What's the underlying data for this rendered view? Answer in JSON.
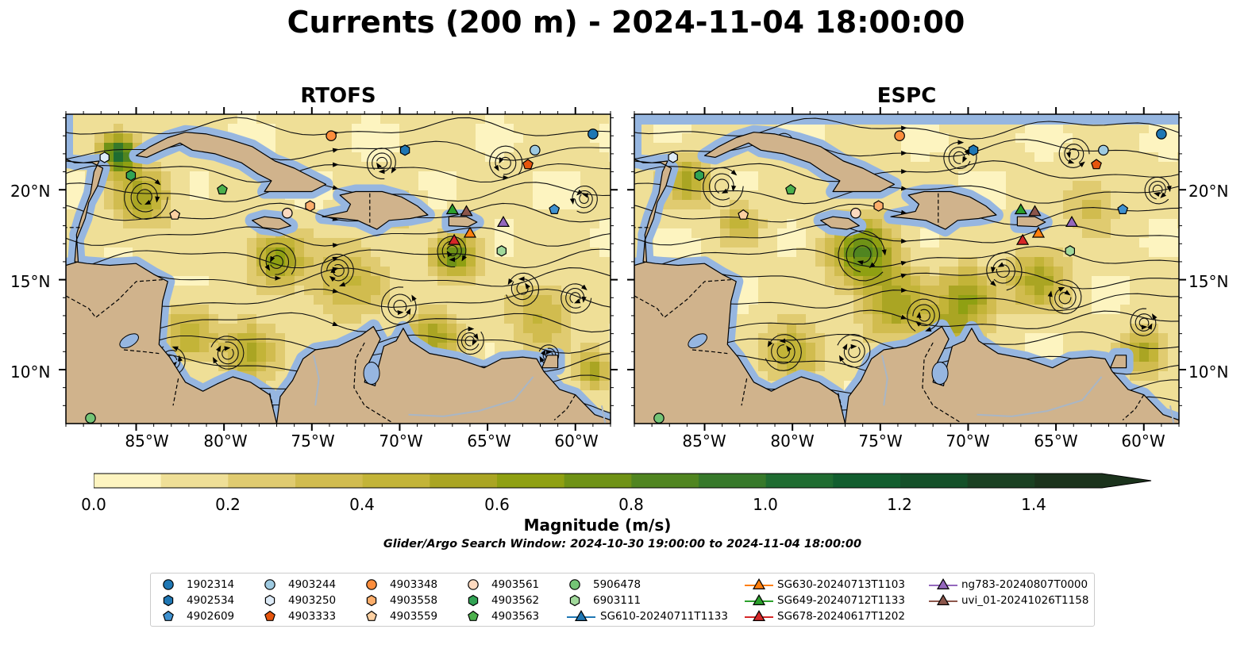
{
  "title": "Currents (200 m) - 2024-11-04 18:00:00",
  "panels": [
    {
      "title": "RTOFS"
    },
    {
      "title": "ESPC"
    }
  ],
  "lat_labels": [
    "20°N",
    "15°N",
    "10°N"
  ],
  "lon_labels": [
    "85°W",
    "80°W",
    "75°W",
    "70°W",
    "65°W",
    "60°W"
  ],
  "map_extent": {
    "lon": [
      -89,
      -58
    ],
    "lat": [
      7,
      24.2
    ]
  },
  "colorbar": {
    "label": "Magnitude (m/s)",
    "ticks": [
      "0.0",
      "0.2",
      "0.4",
      "0.6",
      "0.8",
      "1.0",
      "1.2",
      "1.4"
    ],
    "range": [
      0,
      1.5
    ],
    "extend": "max",
    "colors": [
      "#fdf4c0",
      "#efdf97",
      "#e0cb70",
      "#d1bc4f",
      "#c3b438",
      "#aaa523",
      "#8fa012",
      "#6f9216",
      "#508520",
      "#37792a",
      "#1f6c31",
      "#125e2f",
      "#145029",
      "#1a4022",
      "#1b331c"
    ]
  },
  "search_window": "Glider/Argo Search Window: 2024-10-30 19:00:00 to 2024-11-04 18:00:00",
  "colors": {
    "land": "#d0b38c",
    "water": "#96b6e0",
    "river": "#a9b6c5"
  },
  "legend": [
    {
      "label": "1902314",
      "shape": "circle",
      "color": "#1f77b4"
    },
    {
      "label": "4902534",
      "shape": "hexagon",
      "color": "#1f77b4"
    },
    {
      "label": "4902609",
      "shape": "pentagon",
      "color": "#3f91cf"
    },
    {
      "label": "4903244",
      "shape": "circle",
      "color": "#9ecae1"
    },
    {
      "label": "4903250",
      "shape": "hexagon",
      "color": "#deebf7"
    },
    {
      "label": "4903333",
      "shape": "pentagon",
      "color": "#e6550d"
    },
    {
      "label": "4903348",
      "shape": "circle",
      "color": "#fd8d3c"
    },
    {
      "label": "4903558",
      "shape": "hexagon",
      "color": "#fdae6b"
    },
    {
      "label": "4903559",
      "shape": "pentagon",
      "color": "#fdd0a2"
    },
    {
      "label": "4903561",
      "shape": "circle",
      "color": "#fdd9bf"
    },
    {
      "label": "4903562",
      "shape": "hexagon",
      "color": "#31a354"
    },
    {
      "label": "4903563",
      "shape": "pentagon",
      "color": "#4cb04c"
    },
    {
      "label": "5906478",
      "shape": "circle",
      "color": "#74c476"
    },
    {
      "label": "6903111",
      "shape": "hexagon",
      "color": "#a1d99b"
    },
    {
      "label": "SG610-20240711T1133",
      "shape": "triangle-line",
      "color": "#1f77b4"
    },
    {
      "label": "SG630-20240713T1103",
      "shape": "triangle-line",
      "color": "#ff7f0e"
    },
    {
      "label": "SG649-20240712T1133",
      "shape": "triangle-line",
      "color": "#2ca02c"
    },
    {
      "label": "SG678-20240617T1202",
      "shape": "triangle-line",
      "color": "#d62728"
    },
    {
      "label": "ng783-20240807T0000",
      "shape": "triangle-line",
      "color": "#9467bd"
    },
    {
      "label": "uvi_01-20241026T1158",
      "shape": "triangle-line",
      "color": "#8c564b"
    }
  ],
  "markers": [
    {
      "label": "1902314",
      "lon": -59,
      "lat": 23.1
    },
    {
      "label": "4902534",
      "lon": -69.7,
      "lat": 22.2
    },
    {
      "label": "4902609",
      "lon": -61.2,
      "lat": 18.9
    },
    {
      "label": "4903244",
      "lon": -62.3,
      "lat": 22.2
    },
    {
      "label": "4903250",
      "lon": -86.8,
      "lat": 21.8
    },
    {
      "label": "4903333",
      "lon": -62.7,
      "lat": 21.4
    },
    {
      "label": "4903348",
      "lon": -73.9,
      "lat": 23
    },
    {
      "label": "4903558",
      "lon": -75.1,
      "lat": 19.1
    },
    {
      "label": "4903559",
      "lon": -82.8,
      "lat": 18.6
    },
    {
      "label": "4903561",
      "lon": -76.4,
      "lat": 18.7
    },
    {
      "label": "4903562",
      "lon": -85.3,
      "lat": 20.8
    },
    {
      "label": "4903563",
      "lon": -80.1,
      "lat": 20
    },
    {
      "label": "5906478",
      "lon": -87.6,
      "lat": 7.3
    },
    {
      "label": "6903111",
      "lon": -64.2,
      "lat": 16.6
    },
    {
      "label": "SG630-20240713T1103",
      "lon": -66,
      "lat": 17.6
    },
    {
      "label": "SG649-20240712T1133",
      "lon": -67,
      "lat": 18.9
    },
    {
      "label": "SG678-20240617T1202",
      "lon": -66.9,
      "lat": 17.2
    },
    {
      "label": "ng783-20240807T0000",
      "lon": -64.1,
      "lat": 18.2
    },
    {
      "label": "uvi_01-20241026T1158",
      "lon": -66.2,
      "lat": 18.8
    }
  ]
}
